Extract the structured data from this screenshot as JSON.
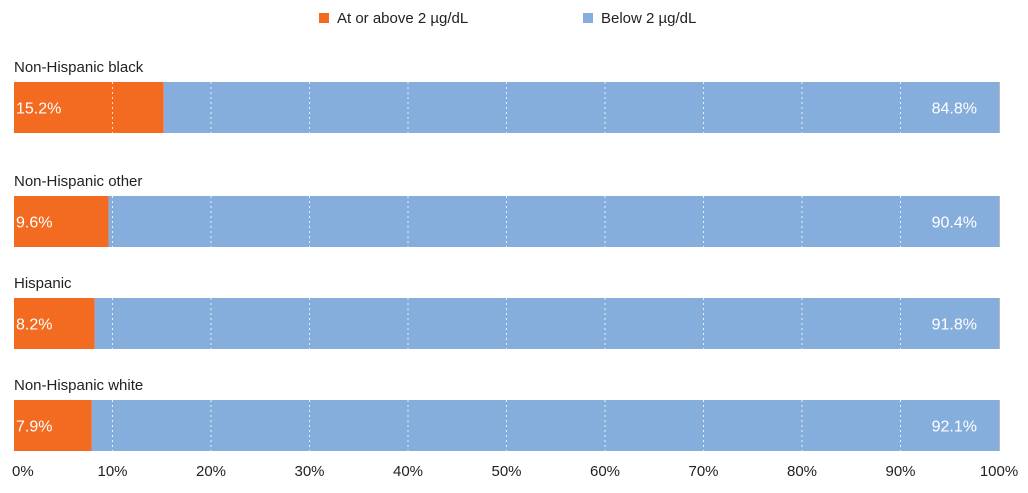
{
  "chart_data": {
    "type": "bar",
    "orientation": "horizontal",
    "stacked": true,
    "percent_stacked": true,
    "categories": [
      "Non-Hispanic black",
      "Non-Hispanic other",
      "Hispanic",
      "Non-Hispanic white"
    ],
    "series": [
      {
        "name": "At or above 2 µg/dL",
        "color": "#f26b21",
        "values": [
          15.2,
          9.6,
          8.2,
          7.9
        ],
        "labels": [
          "15.2%",
          "9.6%",
          "8.2%",
          "7.9%"
        ]
      },
      {
        "name": "Below 2 µg/dL",
        "color": "#86aedc",
        "values": [
          84.8,
          90.4,
          91.8,
          92.1
        ],
        "labels": [
          "84.8%",
          "90.4%",
          "91.8%",
          "92.1%"
        ]
      }
    ],
    "xlim": [
      0,
      100
    ],
    "x_ticks": [
      0,
      10,
      20,
      30,
      40,
      50,
      60,
      70,
      80,
      90,
      100
    ],
    "x_tick_labels": [
      "0%",
      "10%",
      "20%",
      "30%",
      "40%",
      "50%",
      "60%",
      "70%",
      "80%",
      "90%",
      "100%"
    ],
    "grid": true,
    "legend_position": "top-center",
    "title": "",
    "xlabel": "",
    "ylabel": ""
  },
  "colors": {
    "grid": "#ffffff",
    "tick_mark": "#bbbbbb",
    "text": "#222222",
    "data_label": "#ffffff"
  }
}
